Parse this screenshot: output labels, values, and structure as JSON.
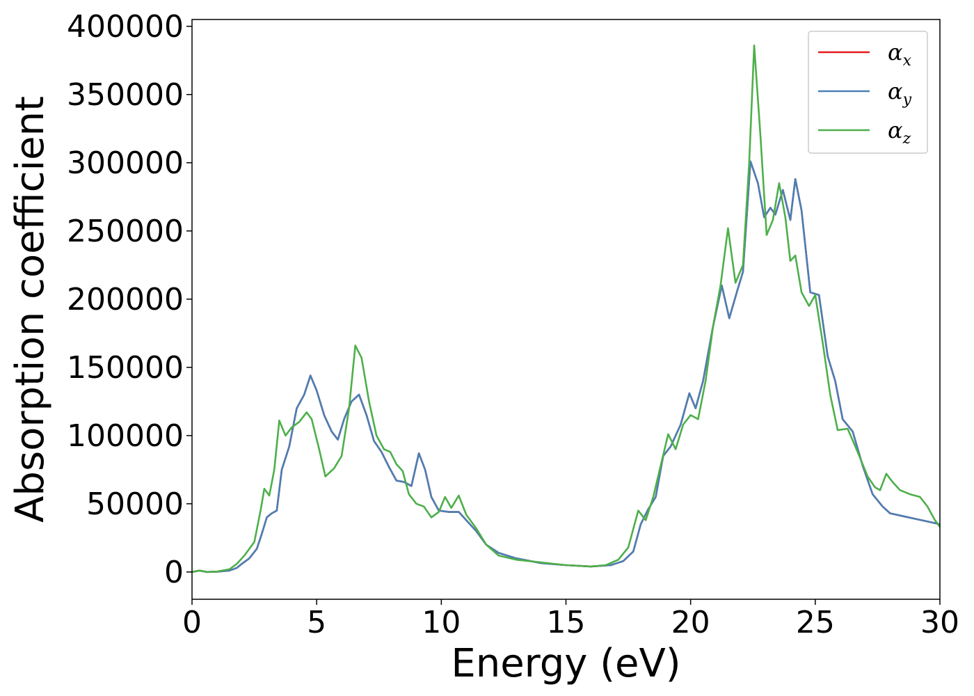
{
  "chart_data": {
    "type": "line",
    "xlabel": "Energy (eV)",
    "ylabel": "Absorption coefficient",
    "xlim": [
      0,
      30
    ],
    "ylim": [
      -20000,
      405000
    ],
    "x_ticks": [
      0,
      5,
      10,
      15,
      20,
      25,
      30
    ],
    "y_ticks": [
      0,
      50000,
      100000,
      150000,
      200000,
      250000,
      300000,
      350000,
      400000
    ],
    "grid": false,
    "legend_position": "top-right",
    "series": [
      {
        "name": "αx",
        "symbol": "α",
        "subscript": "x",
        "color": "#e41a1c",
        "points": [
          [
            0,
            0
          ],
          [
            0.3,
            1000
          ],
          [
            0.6,
            0
          ],
          [
            1.0,
            200
          ],
          [
            1.5,
            1000
          ],
          [
            1.8,
            3000
          ],
          [
            2.0,
            6000
          ],
          [
            2.3,
            10000
          ],
          [
            2.6,
            17000
          ],
          [
            2.8,
            28000
          ],
          [
            3.0,
            40000
          ],
          [
            3.2,
            43000
          ],
          [
            3.4,
            45000
          ],
          [
            3.6,
            75000
          ],
          [
            3.9,
            92000
          ],
          [
            4.2,
            120000
          ],
          [
            4.5,
            130000
          ],
          [
            4.75,
            144000
          ],
          [
            5.0,
            133000
          ],
          [
            5.3,
            115000
          ],
          [
            5.6,
            103000
          ],
          [
            5.85,
            97000
          ],
          [
            6.1,
            112000
          ],
          [
            6.4,
            125000
          ],
          [
            6.7,
            130000
          ],
          [
            7.0,
            115000
          ],
          [
            7.3,
            96000
          ],
          [
            7.6,
            88000
          ],
          [
            7.9,
            77000
          ],
          [
            8.2,
            67000
          ],
          [
            8.5,
            66000
          ],
          [
            8.8,
            63000
          ],
          [
            9.1,
            87000
          ],
          [
            9.35,
            75000
          ],
          [
            9.6,
            55000
          ],
          [
            9.9,
            45000
          ],
          [
            10.3,
            44000
          ],
          [
            10.7,
            44000
          ],
          [
            11.0,
            38000
          ],
          [
            11.4,
            30000
          ],
          [
            11.8,
            20000
          ],
          [
            12.3,
            14000
          ],
          [
            13.0,
            10000
          ],
          [
            14.0,
            6500
          ],
          [
            15.0,
            5000
          ],
          [
            16.0,
            4000
          ],
          [
            16.8,
            5000
          ],
          [
            17.3,
            8000
          ],
          [
            17.7,
            15000
          ],
          [
            18.0,
            35000
          ],
          [
            18.3,
            46000
          ],
          [
            18.6,
            55000
          ],
          [
            18.9,
            85000
          ],
          [
            19.2,
            92000
          ],
          [
            19.6,
            108000
          ],
          [
            19.95,
            131000
          ],
          [
            20.2,
            120000
          ],
          [
            20.5,
            140000
          ],
          [
            20.9,
            180000
          ],
          [
            21.25,
            210000
          ],
          [
            21.55,
            186000
          ],
          [
            21.9,
            208000
          ],
          [
            22.1,
            220000
          ],
          [
            22.4,
            301000
          ],
          [
            22.7,
            285000
          ],
          [
            22.95,
            260000
          ],
          [
            23.2,
            267000
          ],
          [
            23.4,
            262000
          ],
          [
            23.7,
            280000
          ],
          [
            24.0,
            258000
          ],
          [
            24.2,
            288000
          ],
          [
            24.45,
            265000
          ],
          [
            24.8,
            205000
          ],
          [
            25.15,
            203000
          ],
          [
            25.5,
            158000
          ],
          [
            25.8,
            140000
          ],
          [
            26.1,
            112000
          ],
          [
            26.5,
            103000
          ],
          [
            26.9,
            78000
          ],
          [
            27.3,
            57000
          ],
          [
            27.7,
            48000
          ],
          [
            28.0,
            43000
          ],
          [
            28.5,
            41000
          ],
          [
            29.0,
            39000
          ],
          [
            29.5,
            37000
          ],
          [
            30.0,
            35000
          ]
        ]
      },
      {
        "name": "αy",
        "symbol": "α",
        "subscript": "y",
        "color": "#4a7fb5",
        "points": [
          [
            0,
            0
          ],
          [
            0.3,
            1000
          ],
          [
            0.6,
            0
          ],
          [
            1.0,
            200
          ],
          [
            1.5,
            1000
          ],
          [
            1.8,
            3000
          ],
          [
            2.0,
            6000
          ],
          [
            2.3,
            10000
          ],
          [
            2.6,
            17000
          ],
          [
            2.8,
            28000
          ],
          [
            3.0,
            40000
          ],
          [
            3.2,
            43000
          ],
          [
            3.4,
            45000
          ],
          [
            3.6,
            75000
          ],
          [
            3.9,
            92000
          ],
          [
            4.2,
            120000
          ],
          [
            4.5,
            130000
          ],
          [
            4.75,
            144000
          ],
          [
            5.0,
            133000
          ],
          [
            5.3,
            115000
          ],
          [
            5.6,
            103000
          ],
          [
            5.85,
            97000
          ],
          [
            6.1,
            112000
          ],
          [
            6.4,
            125000
          ],
          [
            6.7,
            130000
          ],
          [
            7.0,
            115000
          ],
          [
            7.3,
            96000
          ],
          [
            7.6,
            88000
          ],
          [
            7.9,
            77000
          ],
          [
            8.2,
            67000
          ],
          [
            8.5,
            66000
          ],
          [
            8.8,
            63000
          ],
          [
            9.1,
            87000
          ],
          [
            9.35,
            75000
          ],
          [
            9.6,
            55000
          ],
          [
            9.9,
            45000
          ],
          [
            10.3,
            44000
          ],
          [
            10.7,
            44000
          ],
          [
            11.0,
            38000
          ],
          [
            11.4,
            30000
          ],
          [
            11.8,
            20000
          ],
          [
            12.3,
            14000
          ],
          [
            13.0,
            10000
          ],
          [
            14.0,
            6500
          ],
          [
            15.0,
            5000
          ],
          [
            16.0,
            4000
          ],
          [
            16.8,
            5000
          ],
          [
            17.3,
            8000
          ],
          [
            17.7,
            15000
          ],
          [
            18.0,
            35000
          ],
          [
            18.3,
            46000
          ],
          [
            18.6,
            55000
          ],
          [
            18.9,
            85000
          ],
          [
            19.2,
            92000
          ],
          [
            19.6,
            108000
          ],
          [
            19.95,
            131000
          ],
          [
            20.2,
            120000
          ],
          [
            20.5,
            140000
          ],
          [
            20.9,
            180000
          ],
          [
            21.25,
            210000
          ],
          [
            21.55,
            186000
          ],
          [
            21.9,
            208000
          ],
          [
            22.1,
            220000
          ],
          [
            22.4,
            301000
          ],
          [
            22.7,
            285000
          ],
          [
            22.95,
            260000
          ],
          [
            23.2,
            267000
          ],
          [
            23.4,
            262000
          ],
          [
            23.7,
            280000
          ],
          [
            24.0,
            258000
          ],
          [
            24.2,
            288000
          ],
          [
            24.45,
            265000
          ],
          [
            24.8,
            205000
          ],
          [
            25.15,
            203000
          ],
          [
            25.5,
            158000
          ],
          [
            25.8,
            140000
          ],
          [
            26.1,
            112000
          ],
          [
            26.5,
            103000
          ],
          [
            26.9,
            78000
          ],
          [
            27.3,
            57000
          ],
          [
            27.7,
            48000
          ],
          [
            28.0,
            43000
          ],
          [
            28.5,
            41000
          ],
          [
            29.0,
            39000
          ],
          [
            29.5,
            37000
          ],
          [
            30.0,
            35000
          ]
        ]
      },
      {
        "name": "αz",
        "symbol": "α",
        "subscript": "z",
        "color": "#4daf4a",
        "points": [
          [
            0,
            0
          ],
          [
            0.3,
            1000
          ],
          [
            0.6,
            0
          ],
          [
            1.0,
            300
          ],
          [
            1.5,
            2000
          ],
          [
            1.8,
            6000
          ],
          [
            2.1,
            12000
          ],
          [
            2.5,
            22000
          ],
          [
            2.75,
            45000
          ],
          [
            2.9,
            61000
          ],
          [
            3.1,
            56000
          ],
          [
            3.3,
            75000
          ],
          [
            3.5,
            111000
          ],
          [
            3.75,
            100000
          ],
          [
            4.0,
            106000
          ],
          [
            4.3,
            110000
          ],
          [
            4.6,
            117000
          ],
          [
            4.8,
            112000
          ],
          [
            5.1,
            90000
          ],
          [
            5.35,
            70000
          ],
          [
            5.7,
            76000
          ],
          [
            6.0,
            85000
          ],
          [
            6.3,
            120000
          ],
          [
            6.55,
            166000
          ],
          [
            6.8,
            157000
          ],
          [
            7.1,
            125000
          ],
          [
            7.4,
            100000
          ],
          [
            7.7,
            90000
          ],
          [
            7.95,
            88000
          ],
          [
            8.2,
            79000
          ],
          [
            8.45,
            74000
          ],
          [
            8.7,
            57000
          ],
          [
            9.0,
            50000
          ],
          [
            9.3,
            48000
          ],
          [
            9.6,
            40000
          ],
          [
            9.9,
            44000
          ],
          [
            10.15,
            55000
          ],
          [
            10.4,
            47000
          ],
          [
            10.7,
            56000
          ],
          [
            11.0,
            42000
          ],
          [
            11.4,
            32000
          ],
          [
            11.8,
            20000
          ],
          [
            12.3,
            12000
          ],
          [
            13.0,
            9000
          ],
          [
            14.0,
            7000
          ],
          [
            15.0,
            5000
          ],
          [
            16.0,
            4000
          ],
          [
            16.6,
            5000
          ],
          [
            17.1,
            9000
          ],
          [
            17.5,
            18000
          ],
          [
            17.9,
            45000
          ],
          [
            18.2,
            38000
          ],
          [
            18.5,
            55000
          ],
          [
            18.8,
            78000
          ],
          [
            19.1,
            101000
          ],
          [
            19.4,
            90000
          ],
          [
            19.7,
            108000
          ],
          [
            20.0,
            115000
          ],
          [
            20.3,
            112000
          ],
          [
            20.6,
            140000
          ],
          [
            20.9,
            180000
          ],
          [
            21.2,
            210000
          ],
          [
            21.5,
            252000
          ],
          [
            21.8,
            212000
          ],
          [
            22.1,
            225000
          ],
          [
            22.35,
            300000
          ],
          [
            22.55,
            386000
          ],
          [
            22.8,
            320000
          ],
          [
            23.05,
            247000
          ],
          [
            23.3,
            258000
          ],
          [
            23.55,
            285000
          ],
          [
            23.8,
            260000
          ],
          [
            24.0,
            228000
          ],
          [
            24.2,
            232000
          ],
          [
            24.45,
            205000
          ],
          [
            24.75,
            195000
          ],
          [
            25.0,
            203000
          ],
          [
            25.3,
            168000
          ],
          [
            25.6,
            130000
          ],
          [
            25.9,
            104000
          ],
          [
            26.3,
            105000
          ],
          [
            26.7,
            88000
          ],
          [
            27.1,
            70000
          ],
          [
            27.4,
            62000
          ],
          [
            27.6,
            60000
          ],
          [
            27.85,
            72000
          ],
          [
            28.1,
            66000
          ],
          [
            28.4,
            60000
          ],
          [
            28.8,
            57000
          ],
          [
            29.2,
            55000
          ],
          [
            29.5,
            48000
          ],
          [
            29.8,
            38000
          ],
          [
            30.0,
            33000
          ]
        ]
      }
    ]
  }
}
